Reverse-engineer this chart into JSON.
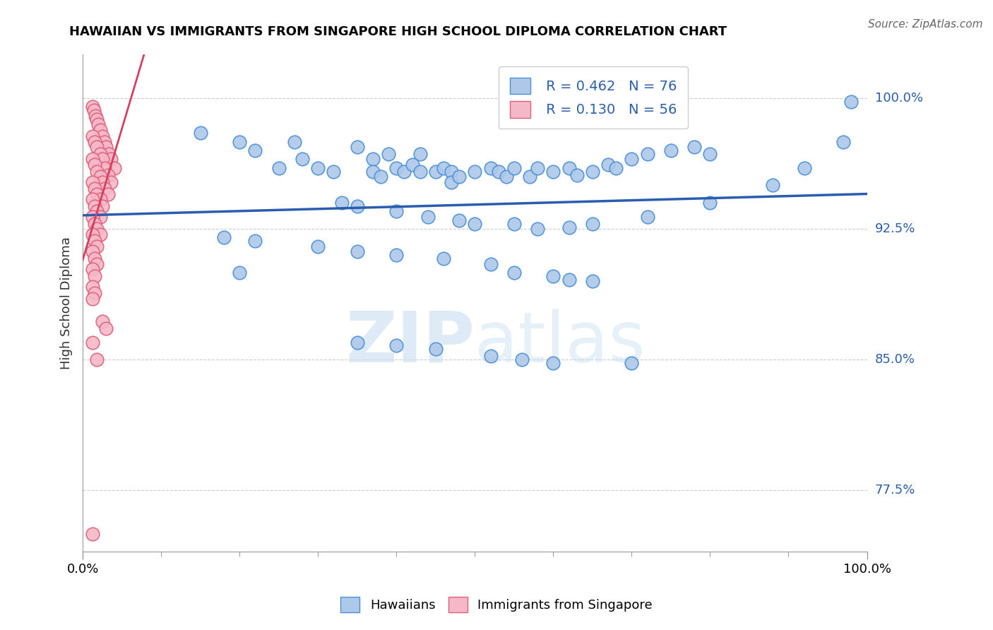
{
  "title": "HAWAIIAN VS IMMIGRANTS FROM SINGAPORE HIGH SCHOOL DIPLOMA CORRELATION CHART",
  "source": "Source: ZipAtlas.com",
  "ylabel": "High School Diploma",
  "ytick_labels": [
    "77.5%",
    "85.0%",
    "92.5%",
    "100.0%"
  ],
  "ytick_values": [
    0.775,
    0.85,
    0.925,
    1.0
  ],
  "watermark_zip": "ZIP",
  "watermark_atlas": "atlas",
  "legend_blue_r": "R = 0.462",
  "legend_blue_n": "N = 76",
  "legend_pink_r": "R = 0.130",
  "legend_pink_n": "N = 56",
  "blue_color": "#adc8e8",
  "blue_edge_color": "#4a90d9",
  "pink_color": "#f5b8c8",
  "pink_edge_color": "#e0607a",
  "line_blue_color": "#2a5db0",
  "line_pink_color": "#d44060",
  "background_color": "#ffffff",
  "blue_label": "Hawaiians",
  "pink_label": "Immigrants from Singapore",
  "blue_scatter_x": [
    0.25,
    0.43,
    0.15,
    0.2,
    0.22,
    0.27,
    0.28,
    0.3,
    0.32,
    0.35,
    0.37,
    0.37,
    0.38,
    0.39,
    0.4,
    0.41,
    0.42,
    0.43,
    0.45,
    0.46,
    0.47,
    0.47,
    0.48,
    0.5,
    0.52,
    0.53,
    0.54,
    0.55,
    0.57,
    0.58,
    0.6,
    0.62,
    0.63,
    0.65,
    0.67,
    0.68,
    0.7,
    0.72,
    0.75,
    0.78,
    0.8,
    0.33,
    0.35,
    0.4,
    0.44,
    0.48,
    0.5,
    0.55,
    0.58,
    0.62,
    0.65,
    0.72,
    0.8,
    0.88,
    0.92,
    0.97,
    0.98,
    0.18,
    0.22,
    0.3,
    0.35,
    0.4,
    0.46,
    0.52,
    0.2,
    0.55,
    0.6,
    0.62,
    0.65,
    0.35,
    0.4,
    0.45,
    0.52,
    0.56,
    0.6,
    0.7
  ],
  "blue_scatter_y": [
    0.96,
    0.968,
    0.98,
    0.975,
    0.97,
    0.975,
    0.965,
    0.96,
    0.958,
    0.972,
    0.965,
    0.958,
    0.955,
    0.968,
    0.96,
    0.958,
    0.962,
    0.958,
    0.958,
    0.96,
    0.958,
    0.952,
    0.955,
    0.958,
    0.96,
    0.958,
    0.955,
    0.96,
    0.955,
    0.96,
    0.958,
    0.96,
    0.956,
    0.958,
    0.962,
    0.96,
    0.965,
    0.968,
    0.97,
    0.972,
    0.968,
    0.94,
    0.938,
    0.935,
    0.932,
    0.93,
    0.928,
    0.928,
    0.925,
    0.926,
    0.928,
    0.932,
    0.94,
    0.95,
    0.96,
    0.975,
    0.998,
    0.92,
    0.918,
    0.915,
    0.912,
    0.91,
    0.908,
    0.905,
    0.9,
    0.9,
    0.898,
    0.896,
    0.895,
    0.86,
    0.858,
    0.856,
    0.852,
    0.85,
    0.848,
    0.848
  ],
  "pink_scatter_x": [
    0.012,
    0.014,
    0.016,
    0.018,
    0.02,
    0.022,
    0.025,
    0.028,
    0.03,
    0.033,
    0.036,
    0.04,
    0.012,
    0.015,
    0.018,
    0.022,
    0.025,
    0.028,
    0.032,
    0.036,
    0.012,
    0.015,
    0.018,
    0.022,
    0.025,
    0.028,
    0.032,
    0.012,
    0.015,
    0.018,
    0.022,
    0.025,
    0.012,
    0.015,
    0.018,
    0.022,
    0.012,
    0.015,
    0.018,
    0.022,
    0.012,
    0.015,
    0.018,
    0.012,
    0.015,
    0.018,
    0.012,
    0.015,
    0.012,
    0.015,
    0.012,
    0.025,
    0.03,
    0.012,
    0.018,
    0.012
  ],
  "pink_scatter_y": [
    0.995,
    0.993,
    0.99,
    0.988,
    0.985,
    0.982,
    0.978,
    0.975,
    0.972,
    0.968,
    0.965,
    0.96,
    0.978,
    0.975,
    0.972,
    0.968,
    0.965,
    0.96,
    0.956,
    0.952,
    0.965,
    0.962,
    0.958,
    0.955,
    0.952,
    0.948,
    0.945,
    0.952,
    0.948,
    0.945,
    0.942,
    0.938,
    0.942,
    0.938,
    0.935,
    0.932,
    0.932,
    0.928,
    0.925,
    0.922,
    0.922,
    0.918,
    0.915,
    0.912,
    0.908,
    0.905,
    0.902,
    0.898,
    0.892,
    0.888,
    0.885,
    0.872,
    0.868,
    0.86,
    0.85,
    0.75
  ],
  "xmin": 0.0,
  "xmax": 1.0,
  "ymin": 0.74,
  "ymax": 1.025
}
